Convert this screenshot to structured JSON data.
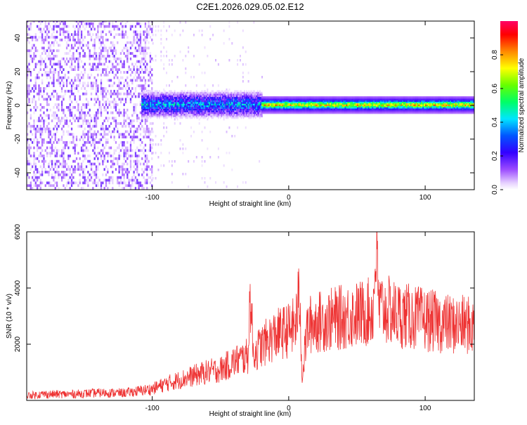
{
  "figure_title": "C2E1.2026.029.05.02.E12",
  "chart_data": [
    {
      "type": "heatmap",
      "name": "spectrogram",
      "xlabel": "Height of straight line (km)",
      "ylabel": "Frequency (Hz)",
      "xlim": [
        -192,
        136
      ],
      "ylim": [
        -50,
        50
      ],
      "xticks": [
        -100,
        0,
        100
      ],
      "yticks": [
        -40,
        -20,
        0,
        20,
        40
      ],
      "colorbar": {
        "label": "Normalized spectral amplitude",
        "range": [
          0,
          1
        ],
        "ticks": [
          0.0,
          0.2,
          0.4,
          0.6,
          0.8
        ],
        "tick_labels": [
          "0.0",
          "0.2",
          "0.4",
          "0.6",
          "0.8"
        ],
        "colormap": [
          "#ffffff",
          "#e6d0ff",
          "#9b4bff",
          "#3300ff",
          "#0055ff",
          "#00e5ff",
          "#00ff66",
          "#66ff00",
          "#ffff00",
          "#ff8800",
          "#ff0000",
          "#ff0066"
        ]
      },
      "regions": [
        {
          "x_range": [
            -192,
            -100
          ],
          "freq_range": [
            -50,
            50
          ],
          "amplitude": 0.15,
          "note": "noise"
        },
        {
          "x_range": [
            -100,
            -20
          ],
          "freq_range": [
            -5,
            5
          ],
          "amplitude": 0.4
        },
        {
          "x_range": [
            -20,
            136
          ],
          "freq_range": [
            -2,
            2
          ],
          "amplitude": 0.85,
          "note": "carrier near 0 Hz"
        }
      ]
    },
    {
      "type": "line",
      "name": "snr",
      "xlabel": "Height of straight line (km)",
      "ylabel": "SNR (10 * v/v)",
      "xlim": [
        -192,
        136
      ],
      "ylim": [
        0,
        6000
      ],
      "xticks": [
        -100,
        0,
        100
      ],
      "yticks": [
        2000,
        4000,
        6000
      ],
      "color": "#ee3333",
      "x": [
        -192,
        -180,
        -160,
        -140,
        -120,
        -100,
        -90,
        -80,
        -70,
        -60,
        -50,
        -40,
        -30,
        -28,
        -26,
        -20,
        -15,
        -10,
        -5,
        0,
        5,
        8,
        10,
        13,
        15,
        20,
        30,
        40,
        50,
        60,
        62,
        64,
        66,
        70,
        80,
        90,
        100,
        110,
        120,
        130,
        136
      ],
      "y": [
        200,
        250,
        250,
        300,
        300,
        450,
        650,
        800,
        950,
        1100,
        1200,
        1500,
        1700,
        4200,
        1800,
        2100,
        2300,
        2500,
        2600,
        2700,
        2900,
        4100,
        800,
        2600,
        2900,
        3000,
        3100,
        3200,
        3300,
        3400,
        3500,
        6000,
        3600,
        3500,
        3300,
        3200,
        3100,
        3000,
        2900,
        2900,
        2800
      ]
    }
  ]
}
